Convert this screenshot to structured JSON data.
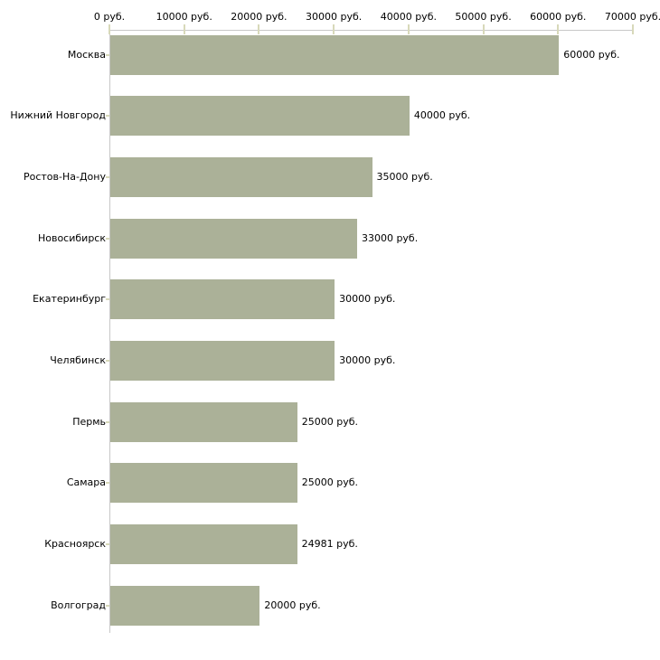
{
  "chart_data": {
    "type": "bar",
    "orientation": "horizontal",
    "title": "",
    "categories": [
      "Москва",
      "Нижний Новгород",
      "Ростов-На-Дону",
      "Новосибирск",
      "Екатеринбург",
      "Челябинск",
      "Пермь",
      "Самара",
      "Красноярск",
      "Волгоград"
    ],
    "values": [
      60000,
      40000,
      35000,
      33000,
      30000,
      30000,
      25000,
      25000,
      24981,
      20000
    ],
    "value_labels": [
      "60000 руб.",
      "40000 руб.",
      "35000 руб.",
      "33000 руб.",
      "30000 руб.",
      "30000 руб.",
      "25000 руб.",
      "25000 руб.",
      "24981 руб.",
      "20000 руб."
    ],
    "unit": "руб.",
    "x_axis": {
      "position": "top",
      "xlim": [
        0,
        70000
      ],
      "ticks": [
        0,
        10000,
        20000,
        30000,
        40000,
        50000,
        60000,
        70000
      ],
      "tick_labels": [
        "0 руб.",
        "10000 руб.",
        "20000 руб.",
        "30000 руб.",
        "40000 руб.",
        "50000 руб.",
        "60000 руб.",
        "70000 руб."
      ]
    },
    "grid": false,
    "legend": false,
    "colors": {
      "bar": "#abb198",
      "axis_line": "#c8c8c8",
      "tick_mark": "#d8d9ba",
      "text": "#000000",
      "background": "#ffffff"
    }
  }
}
